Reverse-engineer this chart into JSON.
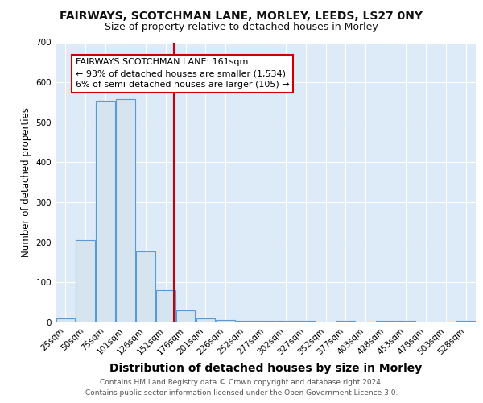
{
  "title1": "FAIRWAYS, SCOTCHMAN LANE, MORLEY, LEEDS, LS27 0NY",
  "title2": "Size of property relative to detached houses in Morley",
  "xlabel": "Distribution of detached houses by size in Morley",
  "ylabel": "Number of detached properties",
  "bin_labels": [
    "25sqm",
    "50sqm",
    "75sqm",
    "101sqm",
    "126sqm",
    "151sqm",
    "176sqm",
    "201sqm",
    "226sqm",
    "252sqm",
    "277sqm",
    "302sqm",
    "327sqm",
    "352sqm",
    "377sqm",
    "403sqm",
    "428sqm",
    "453sqm",
    "478sqm",
    "503sqm",
    "528sqm"
  ],
  "bar_heights": [
    10,
    205,
    553,
    557,
    178,
    80,
    30,
    10,
    7,
    5,
    5,
    5,
    5,
    0,
    5,
    0,
    5,
    5,
    0,
    0,
    5
  ],
  "bar_color": "#d6e4f0",
  "bar_edge_color": "#5b9bd5",
  "red_line_x": 5.4,
  "annotation_line1": "FAIRWAYS SCOTCHMAN LANE: 161sqm",
  "annotation_line2": "← 93% of detached houses are smaller (1,534)",
  "annotation_line3": "6% of semi-detached houses are larger (105) →",
  "annotation_box_color": "white",
  "annotation_box_edge_color": "#cc0000",
  "footer_text": "Contains HM Land Registry data © Crown copyright and database right 2024.\nContains public sector information licensed under the Open Government Licence 3.0.",
  "ylim": [
    0,
    700
  ],
  "yticks": [
    0,
    100,
    200,
    300,
    400,
    500,
    600,
    700
  ],
  "fig_bg_color": "#ffffff",
  "plot_bg_color": "#ddeaf7",
  "grid_color": "#ffffff",
  "title1_fontsize": 10,
  "title2_fontsize": 9,
  "xlabel_fontsize": 10,
  "ylabel_fontsize": 8.5,
  "tick_fontsize": 7.5,
  "annotation_fontsize": 8,
  "footer_fontsize": 6.5
}
